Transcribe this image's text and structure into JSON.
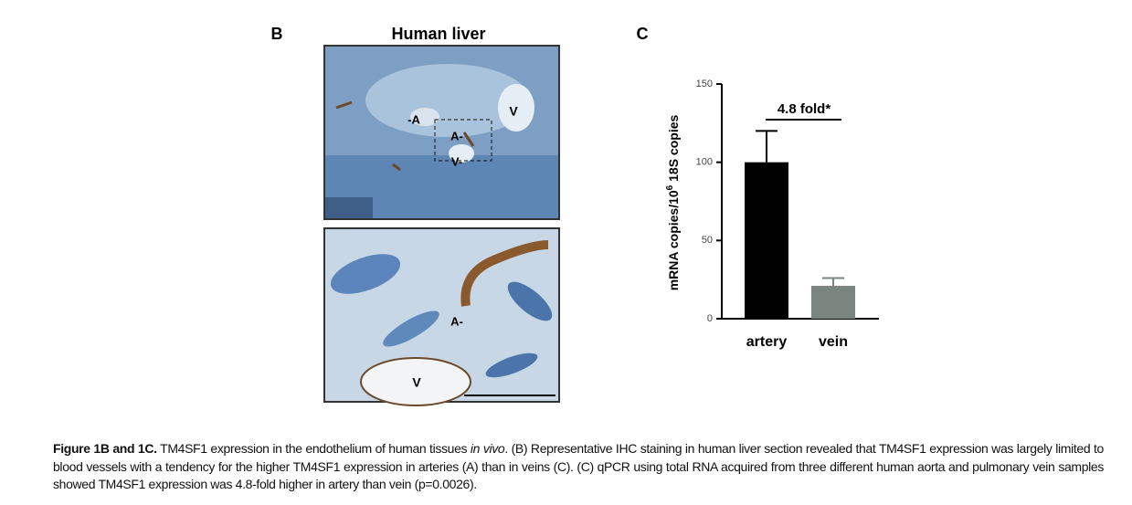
{
  "panel_b": {
    "label": "B",
    "title": "Human liver",
    "top_image_labels": [
      "-A",
      "A-",
      "V-",
      "V"
    ],
    "bottom_image_labels": [
      "A-",
      "V"
    ]
  },
  "panel_c": {
    "label": "C"
  },
  "chart_data": {
    "type": "bar",
    "ylabel": [
      "mRNA copies/10",
      "6",
      " 18S copies"
    ],
    "categories": [
      "artery",
      "vein"
    ],
    "values": [
      100,
      21
    ],
    "errors": [
      20,
      5
    ],
    "colors": [
      "#000000",
      "#7b8580"
    ],
    "ylim": [
      0,
      150
    ],
    "yticks": [
      0,
      50,
      100,
      150
    ],
    "annotation": "4.8 fold*"
  },
  "caption": {
    "bold": "Figure 1B and 1C.",
    "text1": " TM4SF1 expression in the endothelium of human tissues ",
    "italic": "in vivo",
    "text2": ". (B) Representative IHC staining in human liver section revealed that TM4SF1 expression was largely limited to blood vessels with a tendency for the higher TM4SF1 expression in arteries (A) than in veins (C). (C) qPCR using total RNA acquired from three different human aorta and pulmonary vein samples showed TM4SF1 expression was 4.8-fold higher in artery than vein (p=0.0026)."
  }
}
